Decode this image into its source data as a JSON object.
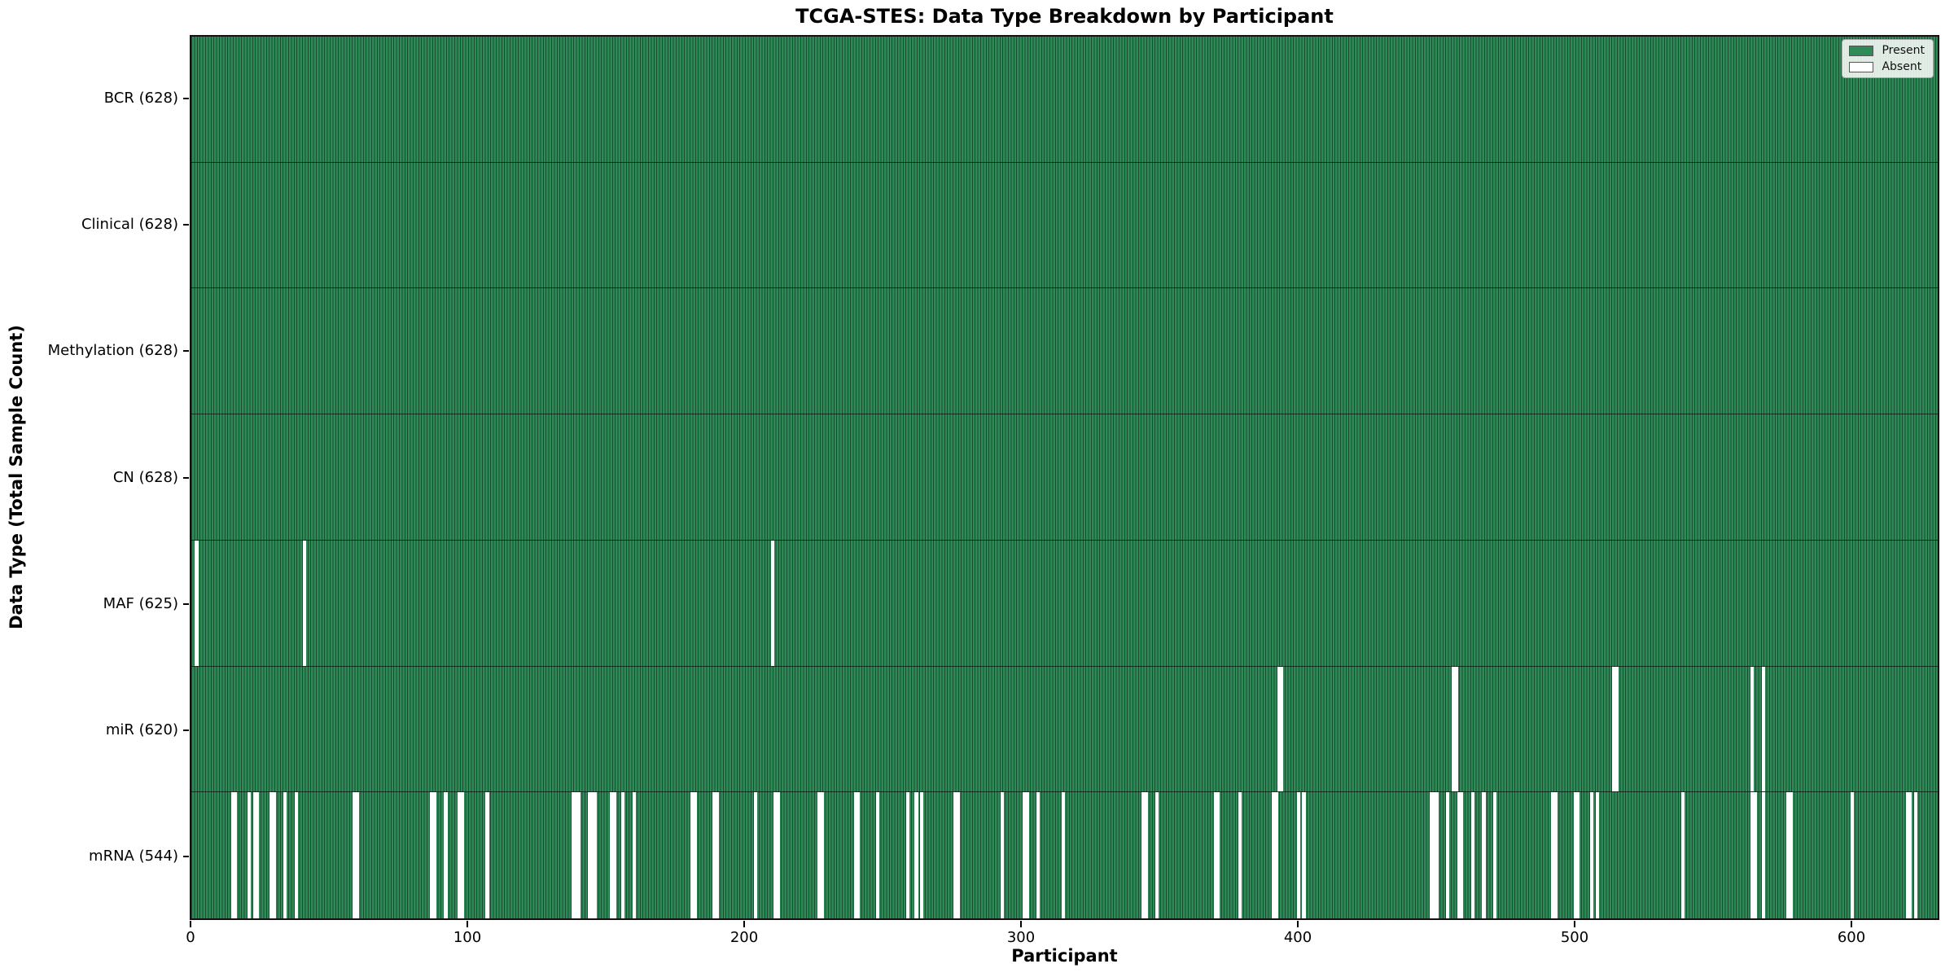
{
  "title": "TCGA-STES: Data Type Breakdown by Participant",
  "xlabel": "Participant",
  "ylabel": "Data Type (Total Sample Count)",
  "legend": {
    "position": "upper right",
    "entries": [
      {
        "label": "Present",
        "swatch": "present"
      },
      {
        "label": "Absent",
        "swatch": "absent"
      }
    ]
  },
  "colors": {
    "present": "#2e8b57",
    "absent": "#ffffff",
    "bar_edge": "rgba(0,0,0,0.45)",
    "row_divider": "rgba(0,0,0,0.62)",
    "plot_border": "#111111",
    "legend_bg": "rgba(255,255,255,0.85)",
    "legend_border": "#a8a8a8",
    "text": "#000000"
  },
  "chart_data": {
    "type": "heatmap",
    "subtype": "presence-absence-matrix",
    "title": "TCGA-STES: Data Type Breakdown by Participant",
    "xlabel": "Participant",
    "ylabel": "Data Type (Total Sample Count)",
    "x_ticks": [
      0,
      100,
      200,
      300,
      400,
      500,
      600
    ],
    "xlim": [
      0,
      628
    ],
    "n_participants": 628,
    "grid": false,
    "legend_position": "upper right",
    "rows": [
      {
        "label": "BCR",
        "count": 628,
        "absent": []
      },
      {
        "label": "Clinical",
        "count": 628,
        "absent": []
      },
      {
        "label": "Methylation",
        "count": 628,
        "absent": []
      },
      {
        "label": "CN",
        "count": 628,
        "absent": []
      },
      {
        "label": "MAF",
        "count": 625,
        "absent": [
          1,
          40,
          209
        ]
      },
      {
        "label": "miR",
        "count": 620,
        "absent": [
          392,
          393,
          455,
          456,
          513,
          514,
          563,
          567
        ]
      },
      {
        "label": "mRNA",
        "count": 544,
        "absent": [
          14,
          15,
          20,
          22,
          23,
          28,
          29,
          33,
          37,
          58,
          59,
          86,
          87,
          91,
          96,
          97,
          106,
          137,
          138,
          139,
          143,
          144,
          145,
          151,
          152,
          155,
          159,
          180,
          181,
          188,
          189,
          203,
          210,
          211,
          226,
          227,
          239,
          240,
          247,
          258,
          261,
          263,
          275,
          276,
          292,
          300,
          301,
          305,
          314,
          343,
          344,
          348,
          369,
          370,
          378,
          390,
          391,
          399,
          401,
          447,
          448,
          449,
          453,
          457,
          458,
          462,
          466,
          470,
          491,
          492,
          499,
          500,
          505,
          507,
          538,
          563,
          564,
          567,
          576,
          577,
          599,
          619,
          620,
          622
        ]
      }
    ]
  }
}
